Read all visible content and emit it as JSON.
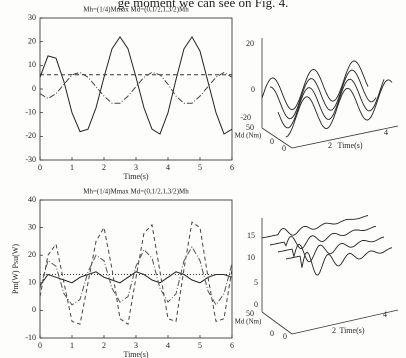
{
  "text": "ge moment we can see on Fig. 4.",
  "chart_data": [
    {
      "type": "line",
      "title": "Mh=(1/4)Mmax Md=(0,1/2,1,3/2)Mh",
      "x_label": "Time(s)",
      "x": [
        0,
        0.25,
        0.5,
        0.75,
        1,
        1.25,
        1.5,
        1.75,
        2,
        2.25,
        2.5,
        2.75,
        3,
        3.25,
        3.5,
        3.75,
        4,
        4.25,
        4.5,
        4.75,
        5,
        5.25,
        5.5,
        5.75,
        6
      ],
      "series": [
        {
          "color": "#222222",
          "dash": "solid",
          "values": [
            5,
            14,
            13,
            3,
            -10,
            -18,
            -17,
            -8,
            5,
            17,
            22,
            17,
            5,
            -8,
            -17,
            -19,
            -10,
            4,
            17,
            22,
            16,
            3,
            -10,
            -19,
            -17
          ]
        },
        {
          "color": "#333333",
          "dash": "dashed",
          "values": [
            6,
            6,
            6,
            6,
            6,
            6,
            6,
            6,
            6,
            6,
            6,
            6,
            6,
            6,
            6,
            6,
            6,
            6,
            6,
            6,
            6,
            6,
            6,
            6,
            6
          ]
        },
        {
          "color": "#444444",
          "dash": "dashdot",
          "values": [
            -2,
            -4,
            -2,
            2,
            6,
            7,
            5,
            1,
            -3,
            -6,
            -6,
            -3,
            1,
            5,
            7,
            6,
            2,
            -3,
            -6,
            -6,
            -3,
            1,
            5,
            7,
            5
          ]
        }
      ],
      "xlim": [
        0,
        6
      ],
      "xticks": [
        0,
        1,
        2,
        3,
        4,
        5,
        6
      ],
      "ylim": [
        -30,
        30
      ],
      "yticks": [
        -30,
        -20,
        -10,
        0,
        10,
        20,
        30
      ],
      "grid": false
    },
    {
      "type": "line",
      "title": "Mh=(1/4)Mmax Md=(0,1/2,1,3/2)Mh",
      "x_label": "Time(s)",
      "y_label": "Pm(W) Psu(W)",
      "x": [
        0,
        0.25,
        0.5,
        0.75,
        1,
        1.25,
        1.5,
        1.75,
        2,
        2.25,
        2.5,
        2.75,
        3,
        3.25,
        3.5,
        3.75,
        4,
        4.25,
        4.5,
        4.75,
        5,
        5.25,
        5.5,
        5.75,
        6
      ],
      "series": [
        {
          "color": "#222222",
          "dash": "solid",
          "values": [
            9,
            13,
            12,
            11,
            10,
            12,
            13,
            14,
            12,
            11,
            10,
            12,
            14,
            13,
            11,
            10,
            12,
            14,
            13,
            11,
            10,
            12,
            13,
            13,
            12
          ]
        },
        {
          "color": "#333333",
          "dash": "dotted",
          "values": [
            13,
            13,
            13,
            13,
            13,
            13,
            13,
            13,
            13,
            13,
            13,
            13,
            13,
            13,
            13,
            13,
            13,
            13,
            13,
            13,
            13,
            13,
            13,
            13,
            13
          ]
        },
        {
          "color": "#444444",
          "dash": "dashed",
          "values": [
            5,
            20,
            24,
            10,
            -4,
            -5,
            10,
            25,
            30,
            15,
            -3,
            -5,
            12,
            28,
            31,
            14,
            -3,
            -4,
            15,
            32,
            30,
            12,
            -4,
            -3,
            15
          ]
        },
        {
          "color": "#555555",
          "dash": "dashdot",
          "values": [
            8,
            18,
            16,
            6,
            2,
            4,
            14,
            20,
            18,
            8,
            3,
            5,
            16,
            22,
            19,
            8,
            3,
            6,
            18,
            23,
            18,
            7,
            2,
            6,
            17
          ]
        }
      ],
      "xlim": [
        0,
        6
      ],
      "xticks": [
        0,
        1,
        2,
        3,
        4,
        5,
        6
      ],
      "ylim": [
        -10,
        40
      ],
      "yticks": [
        -10,
        0,
        10,
        20,
        30,
        40
      ],
      "grid": false
    }
  ],
  "surface_plots": [
    {
      "z_ticks": [
        "20",
        "0",
        "-20"
      ],
      "md_tick": "50",
      "md_label": "Md (Nm)",
      "md_zero": "0",
      "time_zero": "0",
      "time_ticks": [
        "2",
        "4"
      ],
      "time_label": "Time(s)"
    },
    {
      "z_ticks": [
        "15",
        "10",
        "5",
        "0"
      ],
      "md_tick": "50",
      "md_label": "Md (Nm)",
      "md_zero": "0",
      "time_zero": "0",
      "time_ticks": [
        "2",
        "4"
      ],
      "time_label": "Time(s)"
    }
  ]
}
